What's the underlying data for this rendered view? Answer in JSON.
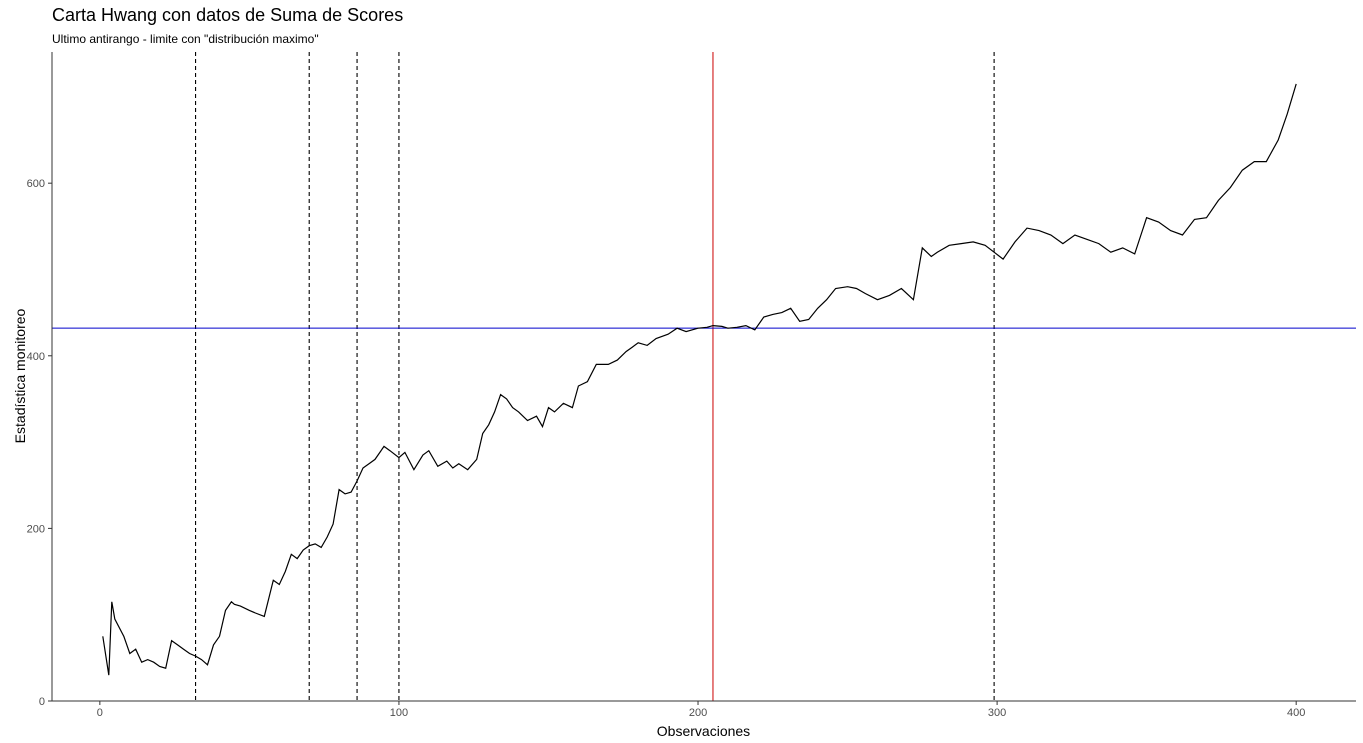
{
  "chart_data": {
    "type": "line",
    "title": "Carta Hwang con datos de Suma de Scores",
    "subtitle": "Ultimo antirango - limite con \"distribución maximo\"",
    "xlabel": "Observaciones",
    "ylabel": "Estadística monitoreo",
    "xlim": [
      -16,
      420
    ],
    "ylim": [
      0,
      752
    ],
    "x_ticks": [
      0,
      100,
      200,
      300,
      400
    ],
    "y_ticks": [
      0,
      200,
      400,
      600
    ],
    "grid": false,
    "series": [
      {
        "color": "#000000",
        "x": [
          1,
          3,
          4,
          5,
          8,
          10,
          12,
          14,
          16,
          18,
          20,
          22,
          24,
          26,
          28,
          30,
          32,
          34,
          36,
          38,
          40,
          42,
          44,
          45,
          47,
          50,
          52,
          55,
          58,
          60,
          62,
          64,
          66,
          68,
          70,
          72,
          74,
          76,
          78,
          80,
          82,
          84,
          86,
          88,
          90,
          92,
          95,
          97,
          100,
          102,
          105,
          108,
          110,
          113,
          116,
          118,
          120,
          123,
          126,
          128,
          130,
          132,
          134,
          136,
          138,
          140,
          143,
          146,
          148,
          150,
          152,
          155,
          158,
          160,
          163,
          166,
          170,
          173,
          176,
          178,
          180,
          183,
          186,
          190,
          193,
          196,
          200,
          203,
          205,
          208,
          210,
          213,
          216,
          219,
          222,
          225,
          228,
          231,
          234,
          237,
          240,
          243,
          246,
          250,
          253,
          256,
          260,
          264,
          268,
          272,
          275,
          278,
          280,
          284,
          288,
          292,
          296,
          299,
          302,
          306,
          310,
          314,
          318,
          322,
          326,
          330,
          334,
          338,
          342,
          346,
          350,
          354,
          358,
          362,
          366,
          370,
          374,
          378,
          382,
          386,
          390,
          394,
          397,
          400
        ],
        "y": [
          75,
          30,
          115,
          95,
          75,
          55,
          60,
          45,
          48,
          45,
          40,
          38,
          70,
          65,
          60,
          55,
          52,
          48,
          42,
          65,
          75,
          105,
          115,
          112,
          110,
          105,
          102,
          98,
          140,
          135,
          150,
          170,
          165,
          175,
          180,
          182,
          178,
          190,
          205,
          245,
          240,
          242,
          255,
          270,
          275,
          280,
          295,
          290,
          282,
          288,
          268,
          285,
          290,
          272,
          278,
          270,
          275,
          268,
          280,
          310,
          320,
          335,
          355,
          350,
          340,
          335,
          325,
          330,
          318,
          340,
          335,
          345,
          340,
          365,
          370,
          390,
          390,
          395,
          405,
          410,
          415,
          412,
          420,
          425,
          432,
          428,
          432,
          433,
          435,
          434,
          432,
          433,
          435,
          430,
          445,
          448,
          450,
          455,
          440,
          442,
          455,
          465,
          478,
          480,
          478,
          472,
          465,
          470,
          478,
          465,
          525,
          515,
          520,
          528,
          530,
          532,
          528,
          520,
          512,
          532,
          548,
          545,
          540,
          530,
          540,
          535,
          530,
          520,
          525,
          518,
          560,
          555,
          545,
          540,
          558,
          560,
          580,
          595,
          615,
          625,
          625,
          650,
          680,
          715
        ]
      }
    ],
    "vlines_dashed": [
      32,
      70,
      86,
      100,
      299
    ],
    "vline_red": 205,
    "hline_blue": 432,
    "colors": {
      "series": "#000000",
      "dashed": "#000000",
      "vline": "#cc0000",
      "hline": "#0000cc",
      "axis": "#333333",
      "tick_label": "#4d4d4d"
    }
  }
}
